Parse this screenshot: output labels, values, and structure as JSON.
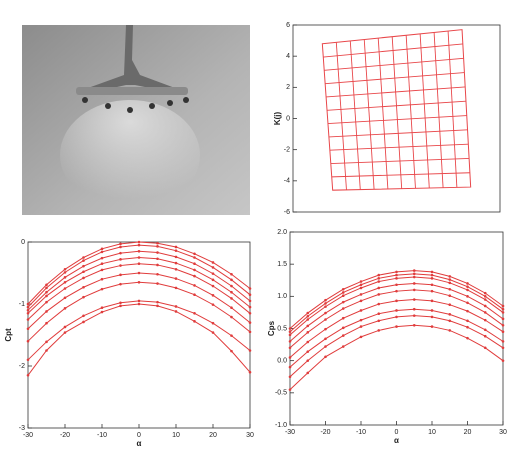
{
  "chart_data": [
    {
      "type": "mesh",
      "ylabel": "K(j)",
      "color": "#e8474a",
      "xlim": [
        -6,
        6
      ],
      "ylim": [
        -6,
        6
      ],
      "yticks": [
        6,
        4,
        2,
        0,
        -2,
        -4,
        -6
      ],
      "rows": 12,
      "cols": 11,
      "corners": [
        {
          "x": -4.3,
          "y": 4.8
        },
        {
          "x": 3.8,
          "y": 5.7
        },
        {
          "x": 4.3,
          "y": -4.4
        },
        {
          "x": -3.7,
          "y": -4.6
        }
      ]
    },
    {
      "type": "line",
      "xlabel": "α",
      "ylabel": "Cpt",
      "x": [
        -30,
        -25,
        -20,
        -15,
        -10,
        -5,
        0,
        5,
        10,
        15,
        20,
        25,
        30
      ],
      "xlim": [
        -30,
        30
      ],
      "xticks": [
        -30,
        -20,
        -10,
        0,
        10,
        20,
        30
      ],
      "ylim": [
        -3,
        0
      ],
      "yticks": [
        0,
        -1,
        -2,
        -3
      ],
      "series": [
        {
          "color": "#e03c3c",
          "values": [
            -1.0,
            -0.69,
            -0.44,
            -0.25,
            -0.11,
            -0.03,
            0,
            -0.02,
            -0.08,
            -0.19,
            -0.33,
            -0.52,
            -0.75
          ]
        },
        {
          "color": "#e03c3c",
          "values": [
            -1.05,
            -0.74,
            -0.49,
            -0.3,
            -0.16,
            -0.08,
            -0.05,
            -0.07,
            -0.14,
            -0.25,
            -0.41,
            -0.61,
            -0.85
          ]
        },
        {
          "color": "#e03c3c",
          "values": [
            -1.1,
            -0.81,
            -0.57,
            -0.39,
            -0.26,
            -0.18,
            -0.15,
            -0.17,
            -0.24,
            -0.35,
            -0.51,
            -0.71,
            -0.95
          ]
        },
        {
          "color": "#e03c3c",
          "values": [
            -1.15,
            -0.87,
            -0.65,
            -0.48,
            -0.35,
            -0.28,
            -0.25,
            -0.27,
            -0.34,
            -0.45,
            -0.61,
            -0.81,
            -1.05
          ]
        },
        {
          "color": "#e03c3c",
          "values": [
            -1.25,
            -0.97,
            -0.75,
            -0.58,
            -0.45,
            -0.38,
            -0.35,
            -0.37,
            -0.44,
            -0.55,
            -0.71,
            -0.91,
            -1.15
          ]
        },
        {
          "color": "#e03c3c",
          "values": [
            -1.4,
            -1.12,
            -0.9,
            -0.73,
            -0.6,
            -0.53,
            -0.5,
            -0.52,
            -0.59,
            -0.7,
            -0.86,
            -1.06,
            -1.3
          ]
        },
        {
          "color": "#e03c3c",
          "values": [
            -1.6,
            -1.31,
            -1.07,
            -0.89,
            -0.76,
            -0.68,
            -0.65,
            -0.67,
            -0.74,
            -0.85,
            -1.01,
            -1.21,
            -1.45
          ]
        },
        {
          "color": "#e03c3c",
          "values": [
            -1.9,
            -1.61,
            -1.37,
            -1.19,
            -1.06,
            -0.98,
            -0.95,
            -0.97,
            -1.04,
            -1.15,
            -1.31,
            -1.51,
            -1.75
          ]
        },
        {
          "color": "#e03c3c",
          "values": [
            -2.15,
            -1.75,
            -1.46,
            -1.29,
            -1.13,
            -1.03,
            -1.0,
            -1.03,
            -1.12,
            -1.28,
            -1.46,
            -1.76,
            -2.1
          ]
        }
      ]
    },
    {
      "type": "line",
      "xlabel": "α",
      "ylabel": "Cps",
      "x": [
        -30,
        -25,
        -20,
        -15,
        -10,
        -5,
        0,
        5,
        10,
        15,
        20,
        25,
        30
      ],
      "xlim": [
        -30,
        30
      ],
      "xticks": [
        -30,
        -20,
        -10,
        0,
        10,
        20,
        30
      ],
      "ylim": [
        -1,
        2
      ],
      "yticks": [
        {
          "value": 2,
          "label": "2.0"
        },
        1.5,
        {
          "value": 1,
          "label": "1.0"
        },
        0.5,
        {
          "value": 0,
          "label": "0.0"
        },
        -0.5,
        {
          "value": -1,
          "label": "-1.0"
        }
      ],
      "series": [
        {
          "color": "#e03c3c",
          "values": [
            0.5,
            0.74,
            0.94,
            1.11,
            1.23,
            1.33,
            1.38,
            1.4,
            1.38,
            1.31,
            1.2,
            1.05,
            0.85
          ]
        },
        {
          "color": "#e03c3c",
          "values": [
            0.45,
            0.69,
            0.89,
            1.06,
            1.18,
            1.28,
            1.33,
            1.35,
            1.33,
            1.26,
            1.15,
            1.0,
            0.8
          ]
        },
        {
          "color": "#e03c3c",
          "values": [
            0.4,
            0.64,
            0.84,
            1.01,
            1.13,
            1.23,
            1.28,
            1.3,
            1.28,
            1.21,
            1.1,
            0.95,
            0.75
          ]
        },
        {
          "color": "#e03c3c",
          "values": [
            0.3,
            0.54,
            0.74,
            0.91,
            1.03,
            1.13,
            1.18,
            1.2,
            1.18,
            1.11,
            1.0,
            0.85,
            0.65
          ]
        },
        {
          "color": "#e03c3c",
          "values": [
            0.2,
            0.44,
            0.64,
            0.81,
            0.93,
            1.03,
            1.08,
            1.1,
            1.08,
            1.01,
            0.9,
            0.75,
            0.55
          ]
        },
        {
          "color": "#e03c3c",
          "values": [
            0.05,
            0.29,
            0.49,
            0.66,
            0.78,
            0.88,
            0.93,
            0.95,
            0.93,
            0.87,
            0.77,
            0.63,
            0.45
          ]
        },
        {
          "color": "#e03c3c",
          "values": [
            -0.1,
            0.14,
            0.34,
            0.51,
            0.63,
            0.73,
            0.78,
            0.8,
            0.78,
            0.72,
            0.62,
            0.48,
            0.3
          ]
        },
        {
          "color": "#e03c3c",
          "values": [
            -0.25,
            0.0,
            0.22,
            0.39,
            0.53,
            0.62,
            0.68,
            0.7,
            0.68,
            0.62,
            0.52,
            0.38,
            0.2
          ]
        },
        {
          "color": "#e03c3c",
          "values": [
            -0.45,
            -0.19,
            0.06,
            0.22,
            0.37,
            0.47,
            0.53,
            0.55,
            0.53,
            0.47,
            0.35,
            0.2,
            0.0
          ]
        }
      ]
    }
  ]
}
